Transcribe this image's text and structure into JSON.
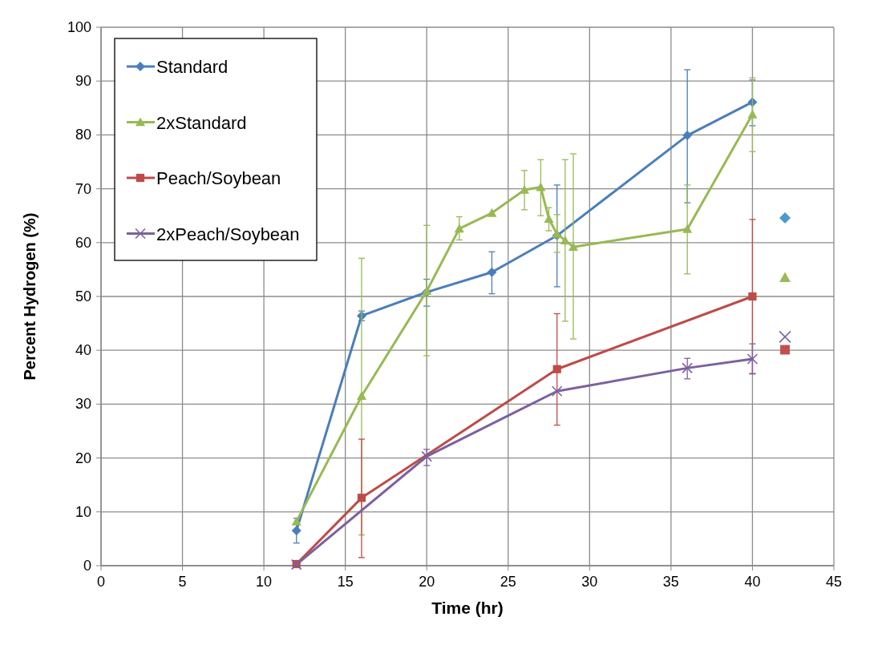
{
  "chart_data": {
    "type": "line",
    "xlabel": "Time (hr)",
    "ylabel": "Percent Hydrogen (%)",
    "xlim": [
      0,
      45
    ],
    "xticks": [
      0,
      5,
      10,
      15,
      20,
      25,
      30,
      35,
      40,
      45
    ],
    "ylim": [
      0,
      100
    ],
    "yticks": [
      0,
      10,
      20,
      30,
      40,
      50,
      60,
      70,
      80,
      90,
      100
    ],
    "grid": true,
    "legend": "top left",
    "line_style": "solid",
    "series": [
      {
        "name": "Standard",
        "color": "#4a7ebb",
        "marker": "diamond",
        "x": [
          12,
          16,
          20,
          24,
          28,
          36,
          40
        ],
        "values": [
          6.5,
          46.4,
          50.8,
          54.5,
          61.3,
          79.9,
          86.1
        ],
        "errors": [
          [
            4.2,
            8.8
          ],
          [
            45.5,
            47.3
          ],
          [
            48.2,
            53.2
          ],
          [
            50.5,
            58.3
          ],
          [
            51.8,
            70.7
          ],
          [
            67.4,
            92.1
          ],
          [
            81.7,
            90.2
          ]
        ]
      },
      {
        "name": "2xStandard",
        "color": "#98b954",
        "marker": "triangle",
        "x": [
          12,
          16,
          20,
          22,
          24,
          26,
          27,
          27.5,
          28,
          28.5,
          29,
          36,
          40
        ],
        "values": [
          8.2,
          31.5,
          51,
          62.6,
          65.5,
          69.8,
          70.3,
          64.4,
          61.6,
          60.4,
          59.2,
          62.5,
          83.8
        ],
        "errors": [
          null,
          [
            5.7,
            57.1
          ],
          [
            39,
            63.2
          ],
          [
            60.5,
            64.8
          ],
          null,
          [
            66.1,
            73.4
          ],
          [
            65,
            75.4
          ],
          [
            62.2,
            66.5
          ],
          [
            58.2,
            65.2
          ],
          [
            45.4,
            75.4
          ],
          [
            42.1,
            76.5
          ],
          [
            54.2,
            70.7
          ],
          [
            76.9,
            90.6
          ]
        ]
      },
      {
        "name": "Peach/Soybean",
        "color": "#be4b48",
        "marker": "square",
        "x": [
          12,
          16,
          28,
          40
        ],
        "values": [
          0.3,
          12.6,
          36.5,
          50
        ],
        "errors": [
          null,
          [
            1.5,
            23.5
          ],
          [
            26.1,
            46.8
          ],
          [
            35.7,
            64.3
          ]
        ]
      },
      {
        "name": "2xPeach/Soybean",
        "color": "#7d60a0",
        "marker": "cross",
        "x": [
          12,
          20,
          28,
          36,
          40
        ],
        "values": [
          0.2,
          20.3,
          32.4,
          36.7,
          38.4
        ],
        "errors": [
          null,
          [
            18.6,
            21.6
          ],
          null,
          [
            34.7,
            38.5
          ],
          [
            35.6,
            41.2
          ]
        ]
      },
      {
        "type": "scatter",
        "color": "#4a9bc8",
        "marker": "diamond",
        "x": [
          42
        ],
        "values": [
          64.6
        ]
      },
      {
        "type": "scatter",
        "color": "#9bbb59",
        "marker": "triangle",
        "x": [
          42
        ],
        "values": [
          53.5
        ]
      },
      {
        "type": "scatter",
        "color": "#c0504d",
        "marker": "square",
        "x": [
          42
        ],
        "values": [
          40.1
        ]
      },
      {
        "type": "scatter",
        "color": "#8064a2",
        "marker": "cross",
        "x": [
          42
        ],
        "values": [
          42.5
        ]
      }
    ]
  }
}
